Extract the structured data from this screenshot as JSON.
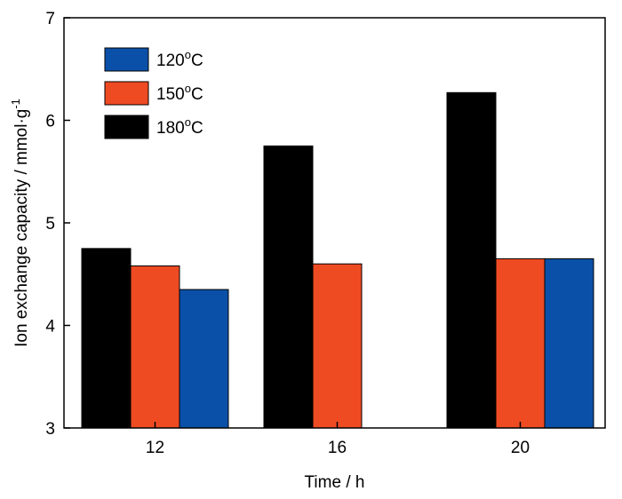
{
  "chart_data": {
    "type": "bar",
    "title": "",
    "xlabel": "Time / h",
    "ylabel": "Ion exchange capacity / mmol·g⁻¹",
    "ylim": [
      3,
      7
    ],
    "yticks": [
      "3",
      "4",
      "5",
      "6",
      "7"
    ],
    "categories": [
      "12",
      "16",
      "20"
    ],
    "series": [
      {
        "name": "180ºC",
        "color": "#000000",
        "values": [
          4.75,
          5.75,
          6.27
        ]
      },
      {
        "name": "150ºC",
        "color": "#ee4b23",
        "values": [
          4.58,
          4.6,
          4.65
        ]
      },
      {
        "name": "120ºC",
        "color": "#0b50a8",
        "values": [
          4.35,
          null,
          4.65
        ]
      }
    ],
    "legend": {
      "position": "top-left",
      "order": [
        "120ºC",
        "150ºC",
        "180ºC"
      ]
    },
    "grid": false
  }
}
